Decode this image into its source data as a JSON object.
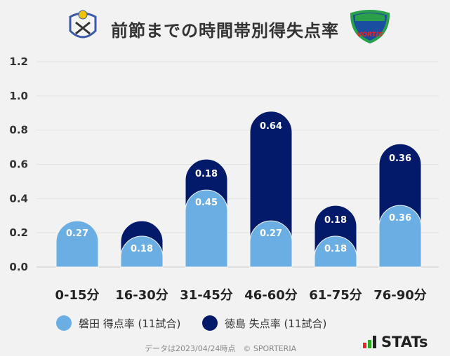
{
  "title": "前節までの時間帯別得失点率",
  "chart_data": {
    "type": "bar",
    "stacked": true,
    "title": "前節までの時間帯別得失点率",
    "categories": [
      "0-15分",
      "16-30分",
      "31-45分",
      "46-60分",
      "61-75分",
      "76-90分"
    ],
    "series": [
      {
        "name": "磐田 得点率 (11試合)",
        "color": "#6aaee3",
        "values": [
          0.27,
          0.18,
          0.45,
          0.27,
          0.18,
          0.36
        ],
        "labels": [
          "0.27",
          "0.18",
          "0.45",
          "0.27",
          "0.18",
          "0.36"
        ]
      },
      {
        "name": "徳島 失点率 (11試合)",
        "color": "#031a6b",
        "values": [
          0,
          0.09,
          0.18,
          0.64,
          0.18,
          0.36
        ],
        "labels": [
          "",
          "",
          "0.18",
          "0.64",
          "0.18",
          "0.36"
        ]
      }
    ],
    "ylim": [
      0,
      1.2
    ],
    "yticks": [
      "0.0",
      "0.2",
      "0.4",
      "0.6",
      "0.8",
      "1.0",
      "1.2"
    ],
    "grid": true,
    "legend": "bottom"
  },
  "footer": "データは2023/04/24時点　© SPORTERIA",
  "brand": "STATs"
}
